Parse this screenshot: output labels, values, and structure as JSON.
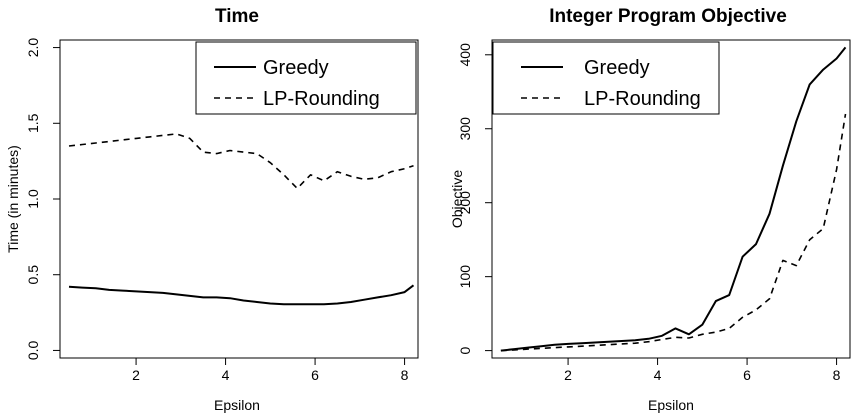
{
  "chart_data": [
    {
      "type": "line",
      "title": "Time",
      "xlabel": "Epsilon",
      "ylabel": "Time (in minutes)",
      "xlim": [
        0.3,
        8.3
      ],
      "ylim": [
        -0.05,
        2.05
      ],
      "xticks": [
        2,
        4,
        6,
        8
      ],
      "yticks": [
        0.0,
        0.5,
        1.0,
        1.5,
        2.0
      ],
      "ytick_labels": [
        "0.0",
        "0.5",
        "1.0",
        "1.5",
        "2.0"
      ],
      "legend_position": "top-right",
      "grid": false,
      "x": [
        0.5,
        0.8,
        1.1,
        1.4,
        1.7,
        2.0,
        2.3,
        2.6,
        2.9,
        3.2,
        3.5,
        3.8,
        4.1,
        4.4,
        4.7,
        5.0,
        5.3,
        5.6,
        5.9,
        6.2,
        6.5,
        6.8,
        7.1,
        7.4,
        7.7,
        8.0,
        8.2
      ],
      "series": [
        {
          "name": "Greedy",
          "style": "solid",
          "values": [
            0.42,
            0.415,
            0.41,
            0.4,
            0.395,
            0.39,
            0.385,
            0.38,
            0.37,
            0.36,
            0.35,
            0.35,
            0.345,
            0.33,
            0.32,
            0.31,
            0.305,
            0.305,
            0.305,
            0.305,
            0.31,
            0.32,
            0.335,
            0.35,
            0.365,
            0.385,
            0.43
          ]
        },
        {
          "name": "LP-Rounding",
          "style": "dashed",
          "values": [
            1.35,
            1.36,
            1.37,
            1.38,
            1.39,
            1.4,
            1.41,
            1.42,
            1.43,
            1.4,
            1.31,
            1.3,
            1.32,
            1.31,
            1.3,
            1.24,
            1.16,
            1.07,
            1.16,
            1.12,
            1.18,
            1.15,
            1.13,
            1.14,
            1.18,
            1.2,
            1.22
          ]
        }
      ]
    },
    {
      "type": "line",
      "title": "Integer Program Objective",
      "xlabel": "Epsilon",
      "ylabel": "Objective",
      "xlim": [
        0.3,
        8.3
      ],
      "ylim": [
        -10,
        420
      ],
      "xticks": [
        2,
        4,
        6,
        8
      ],
      "yticks": [
        0,
        100,
        200,
        300,
        400
      ],
      "ytick_labels": [
        "0",
        "100",
        "200",
        "300",
        "400"
      ],
      "legend_position": "top-left",
      "grid": false,
      "x": [
        0.5,
        0.8,
        1.1,
        1.4,
        1.7,
        2.0,
        2.3,
        2.6,
        2.9,
        3.2,
        3.5,
        3.8,
        4.1,
        4.4,
        4.7,
        5.0,
        5.3,
        5.6,
        5.9,
        6.2,
        6.5,
        6.8,
        7.1,
        7.4,
        7.7,
        8.0,
        8.2
      ],
      "series": [
        {
          "name": "Greedy",
          "style": "solid",
          "values": [
            0,
            2,
            4,
            6,
            8,
            9,
            10,
            11,
            12,
            13,
            14,
            16,
            20,
            30,
            22,
            35,
            67,
            75,
            127,
            144,
            185,
            250,
            310,
            360,
            380,
            395,
            410
          ]
        },
        {
          "name": "LP-Rounding",
          "style": "dashed",
          "values": [
            0,
            1,
            2,
            3,
            4,
            5,
            6,
            7,
            8,
            9,
            10,
            12,
            15,
            18,
            17,
            22,
            25,
            30,
            45,
            55,
            70,
            122,
            115,
            150,
            165,
            245,
            320
          ]
        }
      ]
    }
  ]
}
